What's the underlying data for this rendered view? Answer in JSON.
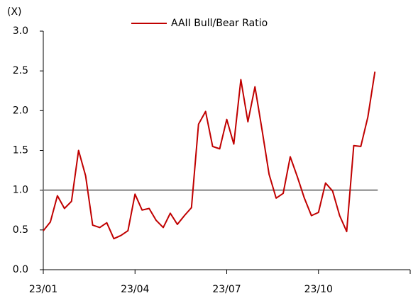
{
  "chart_data": {
    "type": "line",
    "y_label": "(X)",
    "categories": [
      "23/01",
      null,
      null,
      null,
      null,
      null,
      null,
      null,
      null,
      null,
      null,
      null,
      null,
      "23/04",
      null,
      null,
      null,
      null,
      null,
      null,
      null,
      null,
      null,
      null,
      null,
      null,
      "23/07",
      null,
      null,
      null,
      null,
      null,
      null,
      null,
      null,
      null,
      null,
      null,
      null,
      "23/10",
      null,
      null,
      null,
      null,
      null,
      null,
      null,
      null
    ],
    "series": [
      {
        "name": "AAII Bull/Bear Ratio",
        "color": "#c00000",
        "values": [
          0.49,
          0.6,
          0.93,
          0.77,
          0.86,
          1.5,
          1.18,
          0.56,
          0.53,
          0.59,
          0.39,
          0.43,
          0.49,
          0.95,
          0.75,
          0.77,
          0.62,
          0.53,
          0.71,
          0.57,
          0.68,
          0.78,
          1.83,
          1.99,
          1.55,
          1.52,
          1.89,
          1.58,
          2.39,
          1.86,
          2.3,
          1.76,
          1.2,
          0.9,
          0.96,
          1.42,
          1.17,
          0.9,
          0.68,
          0.72,
          1.09,
          0.99,
          0.68,
          0.48,
          1.56,
          1.55,
          1.92,
          2.49
        ]
      }
    ],
    "reference_line": {
      "value": 1.0,
      "color": "#808080"
    },
    "ylim": [
      0,
      3
    ],
    "yticks": [
      {
        "value": 0,
        "label": "0.0"
      },
      {
        "value": 0.5,
        "label": "0.5"
      },
      {
        "value": 1,
        "label": "1.0"
      },
      {
        "value": 1.5,
        "label": "1.5"
      },
      {
        "value": 2,
        "label": "2.0"
      },
      {
        "value": 2.5,
        "label": "2.5"
      },
      {
        "value": 3,
        "label": "3.0"
      }
    ],
    "legend": "top"
  }
}
